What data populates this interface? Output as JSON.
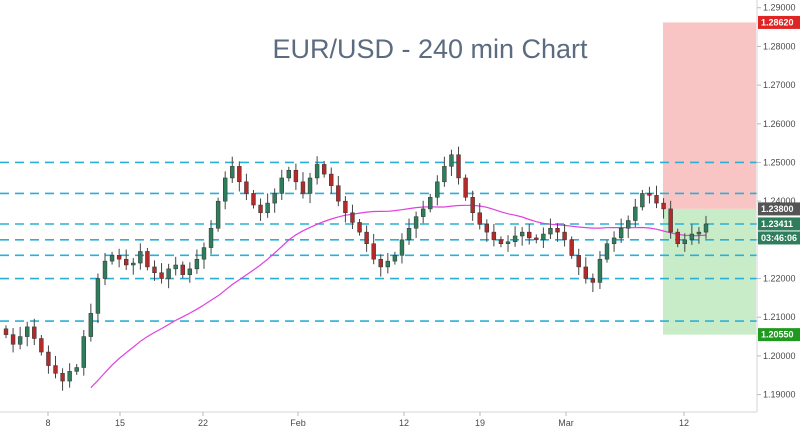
{
  "chart_data": {
    "type": "candlestick",
    "title": "EUR/USD - 240 min Chart",
    "ylim": [
      1.1855,
      1.292
    ],
    "y_ticks": [
      "1.19000",
      "1.20000",
      "1.21000",
      "1.22000",
      "1.23000",
      "1.24000",
      "1.25000",
      "1.26000",
      "1.27000",
      "1.28000",
      "1.29000"
    ],
    "x_ticks": [
      "8",
      "15",
      "22",
      "Feb",
      "12",
      "19",
      "Mar",
      "12"
    ],
    "grid": false,
    "close": [
      1.2055,
      1.203,
      1.205,
      1.2075,
      1.2045,
      1.201,
      1.1975,
      1.1955,
      1.1935,
      1.196,
      1.197,
      1.205,
      1.211,
      1.22,
      1.2245,
      1.226,
      1.225,
      1.2235,
      1.224,
      1.227,
      1.223,
      1.2215,
      1.22,
      1.2225,
      1.2235,
      1.221,
      1.2225,
      1.225,
      1.228,
      1.233,
      1.24,
      1.246,
      1.249,
      1.245,
      1.242,
      1.239,
      1.237,
      1.2395,
      1.242,
      1.246,
      1.248,
      1.245,
      1.242,
      1.246,
      1.2495,
      1.247,
      1.244,
      1.24,
      1.237,
      1.2345,
      1.232,
      1.229,
      1.225,
      1.223,
      1.2245,
      1.226,
      1.23,
      1.233,
      1.236,
      1.238,
      1.241,
      1.245,
      1.249,
      1.252,
      1.246,
      1.241,
      1.237,
      1.234,
      1.232,
      1.23,
      1.229,
      1.2295,
      1.231,
      1.232,
      1.2305,
      1.23,
      1.2315,
      1.233,
      1.232,
      1.23,
      1.226,
      1.223,
      1.22,
      1.219,
      1.225,
      1.229,
      1.2305,
      1.233,
      1.235,
      1.2385,
      1.242,
      1.2415,
      1.2395,
      1.238,
      1.232,
      1.229,
      1.23,
      1.2315,
      1.232,
      1.2341
    ],
    "current_price": "1.23411",
    "countdown": "03:46:06",
    "stop_level": "1.28620",
    "entry_level": "1.23800",
    "target_level": "1.20550",
    "horizontal_levels": [
      1.25,
      1.242,
      1.2341,
      1.23,
      1.226,
      1.22,
      1.209
    ],
    "colors": {
      "up": "#2e7d5b",
      "down": "#b22a2a",
      "moving_average": "#e040e0",
      "levels": "#2ab0d8",
      "risk_zone": "#f8c4c4",
      "reward_zone": "#c8ecc8",
      "title": "#5b6b80"
    }
  }
}
